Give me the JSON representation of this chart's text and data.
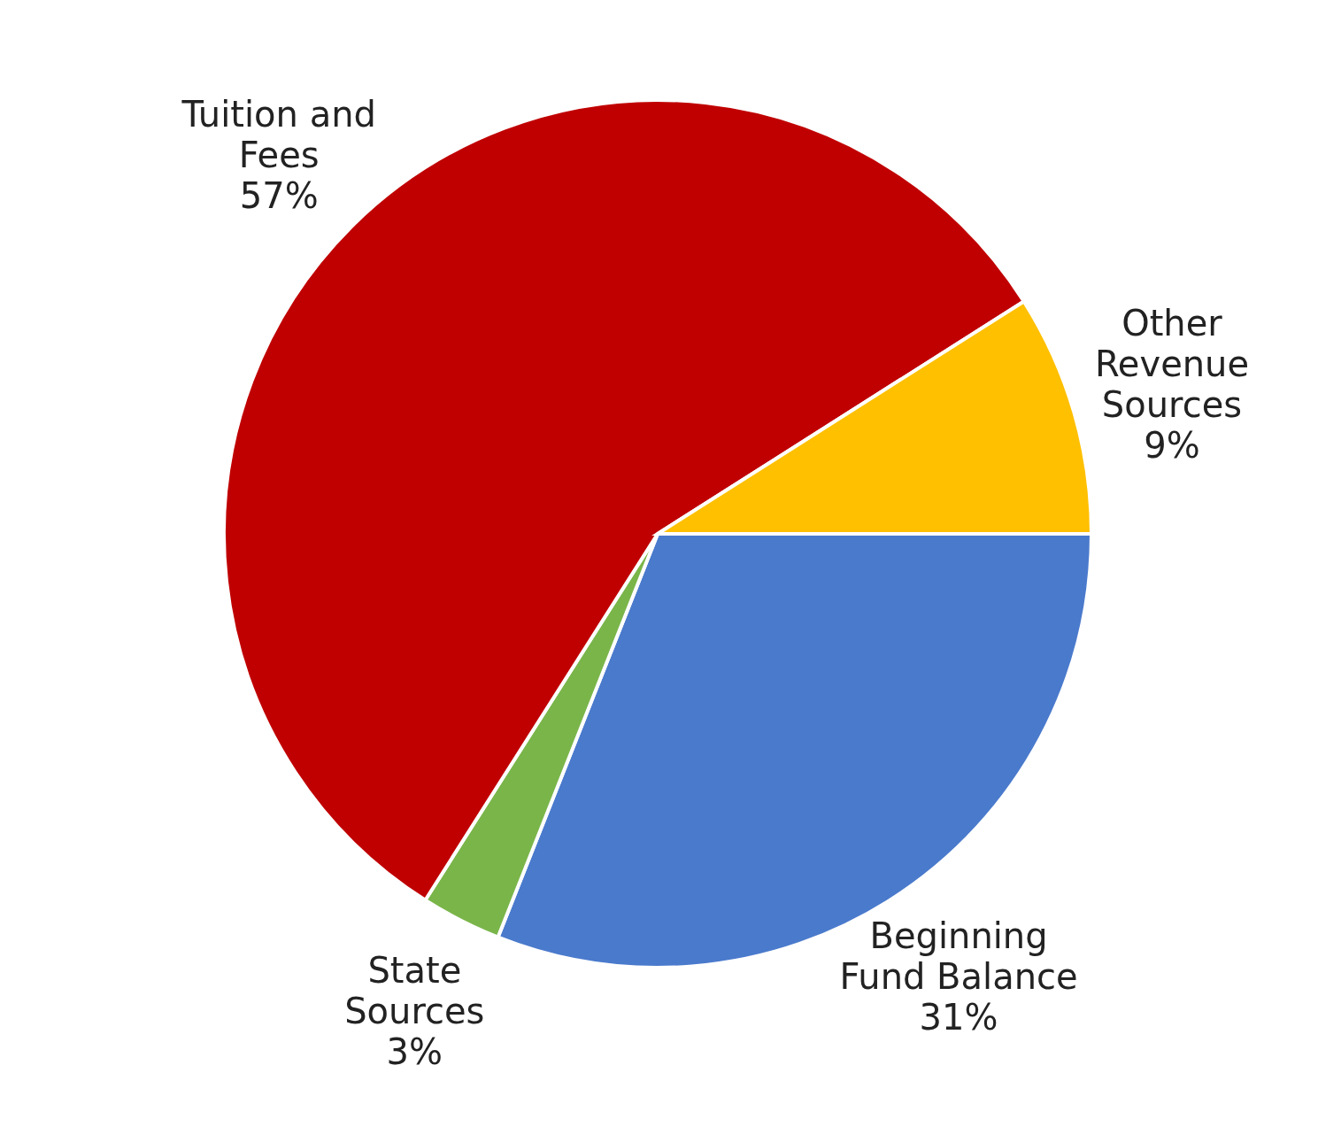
{
  "chart_data": {
    "type": "pie",
    "categories": [
      "Beginning Fund Balance",
      "State Sources",
      "Tuition and Fees",
      "Other Revenue Sources"
    ],
    "values": [
      31,
      3,
      57,
      9
    ],
    "value_labels": [
      "31%",
      "3%",
      "57%",
      "9%"
    ],
    "colors": [
      "#4a7acc",
      "#7ab54a",
      "#c00000",
      "#ffc000"
    ],
    "legend": false
  }
}
